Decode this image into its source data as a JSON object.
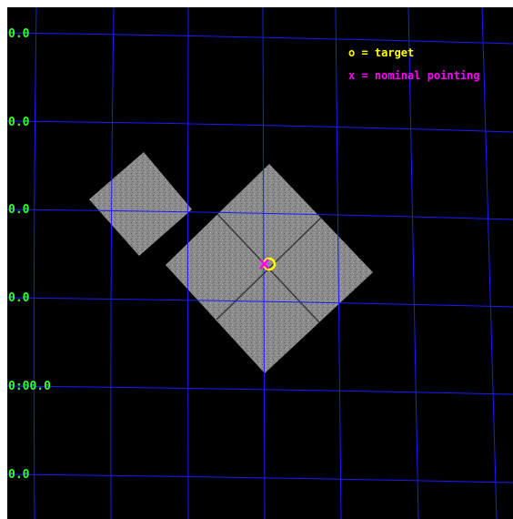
{
  "colors": {
    "background": "#000000",
    "grid": "#1a1aff",
    "dec_label": "#33ff33",
    "target": "#ffff00",
    "nominal": "#ff00ff",
    "detector": "#8c8c8c"
  },
  "dec_labels": [
    "0.0",
    "0.0",
    "0.0",
    "0.0",
    "0:00.0",
    "0.0"
  ],
  "legend": {
    "target": "o = target",
    "nominal": "x = nominal pointing"
  }
}
